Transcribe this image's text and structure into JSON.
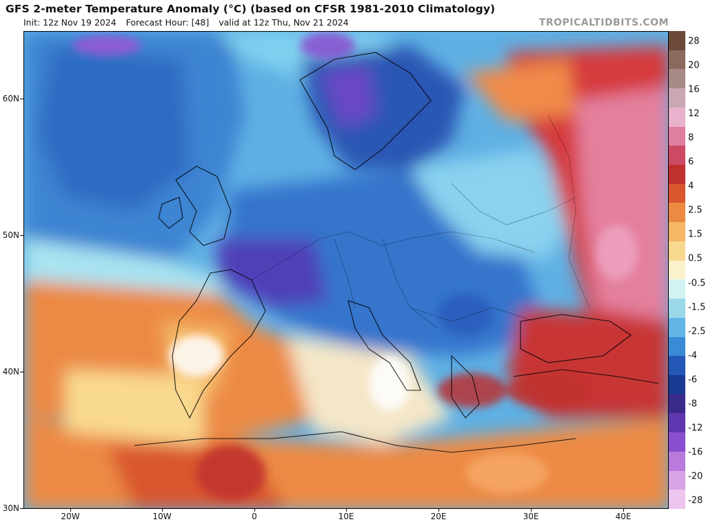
{
  "header": {
    "title": "GFS 2-meter Temperature Anomaly (°C) (based on CFSR 1981-2010 Climatology)",
    "init": "Init: 12z Nov 19 2024",
    "forecast_hour": "Forecast Hour: [48]",
    "valid": "valid at 12z Thu, Nov 21 2024",
    "brand": "TROPICALTIDBITS.COM"
  },
  "lat_labels": [
    "60N",
    "50N",
    "40N",
    "30N"
  ],
  "lon_labels": [
    "20W",
    "10W",
    "0",
    "10E",
    "20E",
    "30E",
    "40E"
  ],
  "colorbar": {
    "labels": [
      "28",
      "20",
      "16",
      "12",
      "8",
      "6",
      "4",
      "2.5",
      "1.5",
      "0.5",
      "-0.5",
      "-1.5",
      "-2.5",
      "-4",
      "-6",
      "-8",
      "-12",
      "-16",
      "-20",
      "-28"
    ],
    "colors": [
      "#6b4a3a",
      "#8b6a5e",
      "#a88a88",
      "#c9a7b4",
      "#e9b2cc",
      "#e07ea0",
      "#cc4a64",
      "#c0302e",
      "#d9562e",
      "#ec8a44",
      "#f5b766",
      "#f9d98f",
      "#fbf2cc",
      "#d3f3f3",
      "#9ad8ea",
      "#62b4e6",
      "#3a8bd6",
      "#2358b6",
      "#1a3a92",
      "#3a2a8a",
      "#5e37b0",
      "#8a4fd0",
      "#b87adc",
      "#d8a2e4",
      "#ecc6ee"
    ]
  }
}
